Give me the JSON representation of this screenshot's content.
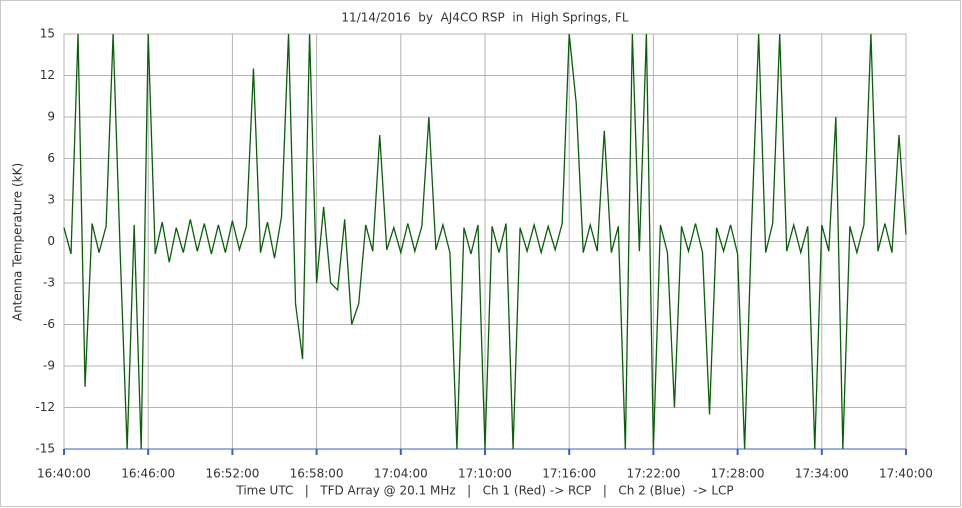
{
  "chart_data": {
    "type": "line",
    "title": "11/14/2016  by  AJ4CO RSP  in  High Springs, FL",
    "ylabel": "Antenna Temperature (kK)",
    "xlabel": "Time UTC   |   TFD Array @ 20.1 MHz   |   Ch 1 (Red) -> RCP   |   Ch 2 (Blue)  -> LCP",
    "xlim": [
      "16:40:00",
      "17:40:00"
    ],
    "xticks": [
      "16:40:00",
      "16:46:00",
      "16:52:00",
      "16:58:00",
      "17:04:00",
      "17:10:00",
      "17:16:00",
      "17:22:00",
      "17:28:00",
      "17:34:00",
      "17:40:00"
    ],
    "ylim": [
      -15,
      15
    ],
    "yticks": [
      -15,
      -12,
      -9,
      -6,
      -3,
      0,
      3,
      6,
      9,
      12,
      15
    ],
    "grid": true,
    "x": [
      "16:40:00",
      "16:40:30",
      "16:41:00",
      "16:41:30",
      "16:42:00",
      "16:42:30",
      "16:43:00",
      "16:43:30",
      "16:44:00",
      "16:44:30",
      "16:45:00",
      "16:45:30",
      "16:46:00",
      "16:46:30",
      "16:47:00",
      "16:47:30",
      "16:48:00",
      "16:48:30",
      "16:49:00",
      "16:49:30",
      "16:50:00",
      "16:50:30",
      "16:51:00",
      "16:51:30",
      "16:52:00",
      "16:52:30",
      "16:53:00",
      "16:53:30",
      "16:54:00",
      "16:54:30",
      "16:55:00",
      "16:55:30",
      "16:56:00",
      "16:56:30",
      "16:57:00",
      "16:57:30",
      "16:58:00",
      "16:58:30",
      "16:59:00",
      "16:59:30",
      "17:00:00",
      "17:00:30",
      "17:01:00",
      "17:01:30",
      "17:02:00",
      "17:02:30",
      "17:03:00",
      "17:03:30",
      "17:04:00",
      "17:04:30",
      "17:05:00",
      "17:05:30",
      "17:06:00",
      "17:06:30",
      "17:07:00",
      "17:07:30",
      "17:08:00",
      "17:08:30",
      "17:09:00",
      "17:09:30",
      "17:10:00",
      "17:10:30",
      "17:11:00",
      "17:11:30",
      "17:12:00",
      "17:12:30",
      "17:13:00",
      "17:13:30",
      "17:14:00",
      "17:14:30",
      "17:15:00",
      "17:15:30",
      "17:16:00",
      "17:16:30",
      "17:17:00",
      "17:17:30",
      "17:18:00",
      "17:18:30",
      "17:19:00",
      "17:19:30",
      "17:20:00",
      "17:20:30",
      "17:21:00",
      "17:21:30",
      "17:22:00",
      "17:22:30",
      "17:23:00",
      "17:23:30",
      "17:24:00",
      "17:24:30",
      "17:25:00",
      "17:25:30",
      "17:26:00",
      "17:26:30",
      "17:27:00",
      "17:27:30",
      "17:28:00",
      "17:28:30",
      "17:29:00",
      "17:29:30",
      "17:30:00",
      "17:30:30",
      "17:31:00",
      "17:31:30",
      "17:32:00",
      "17:32:30",
      "17:33:00",
      "17:33:30",
      "17:34:00",
      "17:34:30",
      "17:35:00",
      "17:35:30",
      "17:36:00",
      "17:36:30",
      "17:37:00",
      "17:37:30",
      "17:38:00",
      "17:38:30",
      "17:39:00",
      "17:39:30",
      "17:40:00"
    ],
    "series": [
      {
        "color": "#0b5e0b",
        "values": [
          1.0,
          -0.9,
          15,
          -10.5,
          1.3,
          -0.8,
          1.1,
          15,
          -0.7,
          -15,
          1.2,
          -15,
          15,
          -0.9,
          1.4,
          -1.5,
          1.0,
          -0.8,
          1.6,
          -0.7,
          1.3,
          -0.9,
          1.2,
          -0.8,
          1.5,
          -0.6,
          1.1,
          12.5,
          -0.8,
          1.4,
          -1.2,
          1.8,
          15,
          -4.5,
          -8.5,
          15,
          -3,
          2.5,
          -3,
          -3.5,
          1.6,
          -6,
          -4.5,
          1.2,
          -0.7,
          7.7,
          -0.6,
          1.0,
          -0.8,
          1.3,
          -0.7,
          1.1,
          9,
          -0.6,
          1.2,
          -0.8,
          -15,
          1.0,
          -0.9,
          1.2,
          -15,
          1.1,
          -0.8,
          1.3,
          -15,
          1.0,
          -0.7,
          1.2,
          -0.8,
          1.1,
          -0.6,
          1.3,
          15,
          10,
          -0.8,
          1.2,
          -0.7,
          8,
          -0.8,
          1.1,
          -15,
          15,
          -0.7,
          15,
          -15,
          1.2,
          -0.8,
          -12,
          1.1,
          -0.7,
          1.3,
          -0.8,
          -12.5,
          1.0,
          -0.7,
          1.2,
          -0.9,
          -15,
          1.1,
          15,
          -0.8,
          1.3,
          15,
          -0.7,
          1.2,
          -0.8,
          1.1,
          -15,
          1.2,
          -0.7,
          9,
          -15,
          1.1,
          -0.8,
          1.2,
          15,
          -0.7,
          1.3,
          -0.8,
          7.7,
          0.5
        ]
      }
    ]
  }
}
